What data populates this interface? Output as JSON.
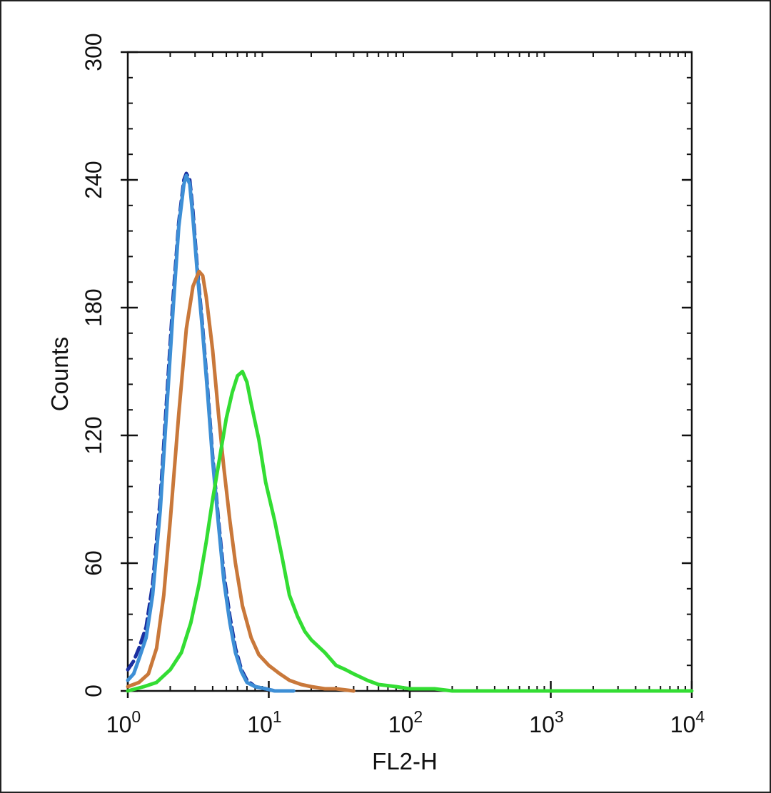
{
  "chart_data": {
    "type": "line",
    "title": "",
    "xlabel": "FL2-H",
    "ylabel": "Counts",
    "x_scale": "log",
    "xlim": [
      1,
      10000
    ],
    "ylim": [
      0,
      300
    ],
    "x_ticks": [
      {
        "value": 1,
        "base": "10",
        "exp": "0"
      },
      {
        "value": 10,
        "base": "10",
        "exp": "1"
      },
      {
        "value": 100,
        "base": "10",
        "exp": "2"
      },
      {
        "value": 1000,
        "base": "10",
        "exp": "3"
      },
      {
        "value": 10000,
        "base": "10",
        "exp": "4"
      }
    ],
    "y_ticks": [
      0,
      60,
      120,
      180,
      240,
      300
    ],
    "grid": false,
    "legend": "none",
    "series": [
      {
        "color": "#1a2fa0",
        "dashed": true,
        "x": [
          1.0,
          1.1,
          1.2,
          1.35,
          1.5,
          1.7,
          1.9,
          2.1,
          2.3,
          2.5,
          2.6,
          2.75,
          2.9,
          3.1,
          3.4,
          3.7,
          4.0,
          4.4,
          4.8,
          5.3,
          5.8,
          6.4,
          7.0,
          8.0,
          9.5,
          11.0,
          15.0
        ],
        "y": [
          10,
          14,
          20,
          30,
          50,
          90,
          140,
          185,
          220,
          240,
          243,
          240,
          225,
          200,
          170,
          140,
          110,
          80,
          55,
          35,
          20,
          10,
          5,
          2,
          1,
          0,
          0
        ]
      },
      {
        "color": "#3d8fd6",
        "dashed": false,
        "x": [
          1.0,
          1.1,
          1.2,
          1.35,
          1.5,
          1.7,
          1.9,
          2.1,
          2.3,
          2.5,
          2.6,
          2.75,
          2.9,
          3.1,
          3.4,
          3.7,
          4.0,
          4.4,
          4.8,
          5.3,
          5.8,
          6.4,
          7.0,
          8.0,
          9.5,
          11.0,
          15.0
        ],
        "y": [
          5,
          8,
          15,
          25,
          45,
          85,
          135,
          180,
          218,
          238,
          242,
          238,
          222,
          198,
          168,
          138,
          108,
          78,
          52,
          32,
          18,
          9,
          4,
          2,
          1,
          0,
          0
        ]
      },
      {
        "color": "#c9783a",
        "dashed": false,
        "x": [
          1.0,
          1.2,
          1.4,
          1.6,
          1.8,
          2.0,
          2.3,
          2.6,
          2.9,
          3.2,
          3.4,
          3.6,
          4.0,
          4.4,
          4.8,
          5.3,
          5.8,
          6.5,
          7.5,
          8.5,
          10.0,
          12.0,
          14.0,
          17.0,
          20.0,
          25.0,
          30.0,
          40.0
        ],
        "y": [
          2,
          4,
          8,
          20,
          45,
          80,
          130,
          170,
          190,
          197,
          195,
          185,
          160,
          130,
          105,
          80,
          60,
          40,
          25,
          17,
          12,
          8,
          5,
          3,
          2,
          1,
          1,
          0
        ]
      },
      {
        "color": "#33dd33",
        "dashed": false,
        "x": [
          1.0,
          1.3,
          1.6,
          2.0,
          2.4,
          2.8,
          3.2,
          3.6,
          4.0,
          4.5,
          5.0,
          5.5,
          6.0,
          6.5,
          7.0,
          7.5,
          8.5,
          9.5,
          11.0,
          12.5,
          14.0,
          16.0,
          18.0,
          20.0,
          25.0,
          30.0,
          35.0,
          40.0,
          50.0,
          60.0,
          80.0,
          100.0,
          150.0,
          200.0,
          300.0,
          1000.0,
          10000.0
        ],
        "y": [
          0,
          2,
          4,
          10,
          18,
          32,
          50,
          70,
          90,
          110,
          128,
          140,
          148,
          150,
          145,
          135,
          118,
          98,
          80,
          62,
          45,
          35,
          28,
          24,
          18,
          12,
          10,
          8,
          5,
          3,
          2,
          1,
          1,
          0,
          0,
          0,
          0
        ]
      }
    ]
  }
}
